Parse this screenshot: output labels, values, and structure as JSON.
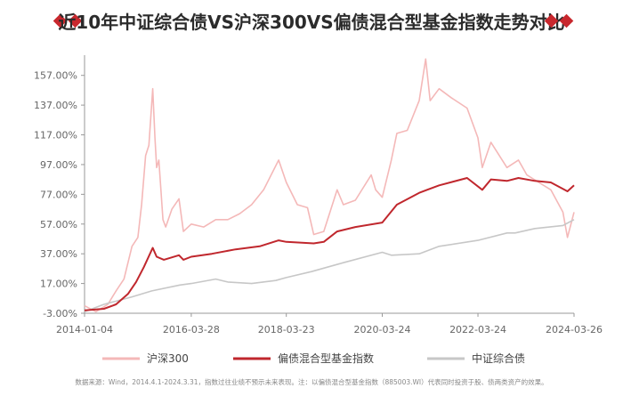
{
  "page": {
    "title": "近10年中证综合债VS沪深300VS偏债混合型基金指数走势对比",
    "note": "数据来源：Wind，2014.4.1-2024.3.31，指数过往业绩不预示未来表现。注：以偏债混合型基金指数（885003.WI）代表同时投资于股、债两类资产的效果。"
  },
  "colors": {
    "accent": "#c8282e",
    "hs300": "#f4b8b8",
    "bond_mixed": "#c0272d",
    "bond_index": "#c7c7c7",
    "axis": "#999999",
    "tick_text": "#666666"
  },
  "chart_data": {
    "type": "line",
    "title": "近10年中证综合债VS沪深300VS偏债混合型基金指数走势对比",
    "xlabel": "",
    "ylabel": "",
    "x_ticks": [
      "2014-01-04",
      "2016-03-28",
      "2018-03-23",
      "2020-03-24",
      "2022-03-24",
      "2024-03-26"
    ],
    "y_ticks": [
      "-3.00%",
      "17.00%",
      "37.00%",
      "57.00%",
      "77.00%",
      "97.00%",
      "117.00%",
      "137.00%",
      "157.00%"
    ],
    "ylim": [
      -3,
      167
    ],
    "grid": false,
    "legend_position": "bottom",
    "series": [
      {
        "name": "沪深300",
        "key": "hs300",
        "x": [
          "2014-01-04",
          "2014-04-01",
          "2014-07-01",
          "2014-09-01",
          "2014-11-01",
          "2015-01-01",
          "2015-02-15",
          "2015-03-15",
          "2015-04-15",
          "2015-05-10",
          "2015-06-08",
          "2015-06-25",
          "2015-07-08",
          "2015-07-25",
          "2015-08-25",
          "2015-09-15",
          "2015-11-01",
          "2015-12-25",
          "2016-01-28",
          "2016-03-28",
          "2016-07-01",
          "2016-10-01",
          "2017-01-01",
          "2017-04-01",
          "2017-07-01",
          "2017-10-01",
          "2018-01-24",
          "2018-03-23",
          "2018-06-15",
          "2018-09-01",
          "2018-10-18",
          "2019-01-03",
          "2019-04-15",
          "2019-06-01",
          "2019-09-01",
          "2019-12-31",
          "2020-02-03",
          "2020-03-24",
          "2020-06-01",
          "2020-07-13",
          "2020-10-01",
          "2020-12-31",
          "2021-02-18",
          "2021-03-24",
          "2021-06-01",
          "2021-09-01",
          "2021-12-31",
          "2022-03-24",
          "2022-04-26",
          "2022-07-01",
          "2022-10-31",
          "2023-01-27",
          "2023-04-01",
          "2023-07-01",
          "2023-10-01",
          "2024-01-01",
          "2024-02-05",
          "2024-03-26"
        ],
        "y": [
          2,
          -2,
          3,
          12,
          20,
          42,
          48,
          70,
          103,
          110,
          148,
          115,
          95,
          100,
          60,
          55,
          67,
          74,
          52,
          57,
          55,
          60,
          60,
          64,
          70,
          80,
          100,
          85,
          70,
          68,
          50,
          52,
          80,
          70,
          73,
          90,
          80,
          75,
          100,
          118,
          120,
          140,
          168,
          140,
          148,
          142,
          135,
          115,
          95,
          112,
          95,
          100,
          90,
          85,
          80,
          65,
          48,
          65
        ]
      },
      {
        "name": "偏债混合型基金指数",
        "key": "bond_mixed",
        "x": [
          "2014-01-04",
          "2014-06-01",
          "2014-09-01",
          "2014-12-01",
          "2015-02-01",
          "2015-04-01",
          "2015-06-08",
          "2015-07-08",
          "2015-09-01",
          "2015-12-25",
          "2016-01-28",
          "2016-03-28",
          "2016-09-01",
          "2017-03-01",
          "2017-09-01",
          "2018-01-24",
          "2018-03-23",
          "2018-10-18",
          "2019-01-03",
          "2019-04-15",
          "2019-09-01",
          "2020-03-24",
          "2020-07-13",
          "2020-12-31",
          "2021-03-01",
          "2021-06-01",
          "2021-12-31",
          "2022-04-26",
          "2022-07-01",
          "2022-10-31",
          "2023-01-27",
          "2023-06-01",
          "2023-10-01",
          "2024-02-05",
          "2024-03-26"
        ],
        "y": [
          -1,
          0,
          3,
          10,
          18,
          28,
          41,
          35,
          33,
          36,
          33,
          35,
          37,
          40,
          42,
          46,
          45,
          44,
          45,
          52,
          55,
          58,
          70,
          78,
          80,
          83,
          88,
          80,
          87,
          86,
          88,
          86,
          85,
          79,
          83
        ]
      },
      {
        "name": "中证综合债",
        "key": "bond_index",
        "x": [
          "2014-01-04",
          "2014-06-01",
          "2015-01-01",
          "2015-06-01",
          "2016-01-01",
          "2016-03-28",
          "2016-10-01",
          "2017-01-01",
          "2017-07-01",
          "2018-01-01",
          "2018-03-23",
          "2018-10-01",
          "2019-06-01",
          "2020-03-24",
          "2020-06-01",
          "2020-12-31",
          "2021-06-01",
          "2022-03-24",
          "2022-11-01",
          "2023-01-01",
          "2023-06-01",
          "2024-01-01",
          "2024-03-26"
        ],
        "y": [
          -2,
          3,
          8,
          12,
          16,
          17,
          20,
          18,
          17,
          19,
          21,
          25,
          31,
          38,
          36,
          37,
          42,
          46,
          51,
          51,
          54,
          56,
          60
        ]
      }
    ]
  }
}
